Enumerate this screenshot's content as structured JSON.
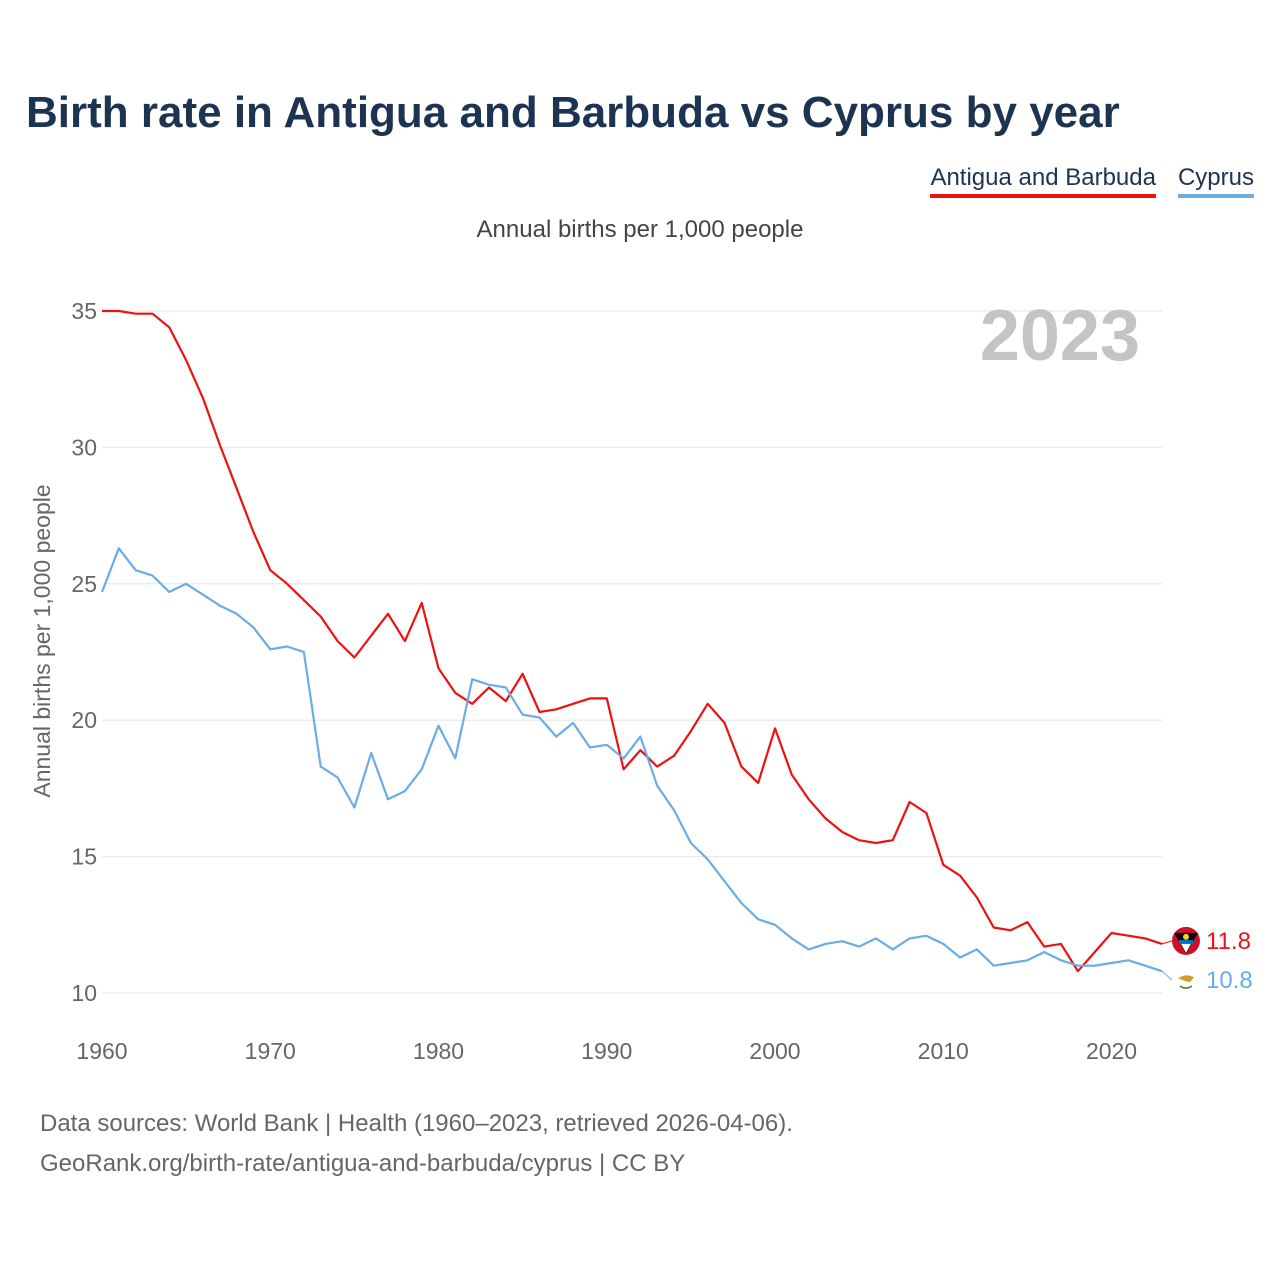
{
  "title": "Birth rate in Antigua and Barbuda vs Cyprus by year",
  "subtitle": "Annual births per 1,000 people",
  "year_watermark": "2023",
  "legend": [
    {
      "name": "Antigua and Barbuda",
      "color": "#ee1111"
    },
    {
      "name": "Cyprus",
      "color": "#6aace6"
    }
  ],
  "source_line1": "Data sources: World Bank | Health (1960–2023, retrieved 2026-04-06).",
  "source_line2": "GeoRank.org/birth-rate/antigua-and-barbuda/cyprus | CC BY",
  "chart_data": {
    "type": "line",
    "title": "Birth rate in Antigua and Barbuda vs Cyprus by year",
    "xlabel": "",
    "ylabel": "Annual births per 1,000 people",
    "xlim": [
      1960,
      2023
    ],
    "ylim": [
      10,
      35
    ],
    "xticks": [
      1960,
      1970,
      1980,
      1990,
      2000,
      2010,
      2020
    ],
    "yticks": [
      10,
      15,
      20,
      25,
      30,
      35
    ],
    "grid": true,
    "x": [
      1960,
      1961,
      1962,
      1963,
      1964,
      1965,
      1966,
      1967,
      1968,
      1969,
      1970,
      1971,
      1972,
      1973,
      1974,
      1975,
      1976,
      1977,
      1978,
      1979,
      1980,
      1981,
      1982,
      1983,
      1984,
      1985,
      1986,
      1987,
      1988,
      1989,
      1990,
      1991,
      1992,
      1993,
      1994,
      1995,
      1996,
      1997,
      1998,
      1999,
      2000,
      2001,
      2002,
      2003,
      2004,
      2005,
      2006,
      2007,
      2008,
      2009,
      2010,
      2011,
      2012,
      2013,
      2014,
      2015,
      2016,
      2017,
      2018,
      2019,
      2020,
      2021,
      2022,
      2023
    ],
    "series": [
      {
        "name": "Antigua and Barbuda",
        "color": "#ee1111",
        "end_label": "11.8",
        "values": [
          35.0,
          35.0,
          34.9,
          34.9,
          34.4,
          33.2,
          31.8,
          30.1,
          28.5,
          26.9,
          25.5,
          25.0,
          24.4,
          23.8,
          22.9,
          22.3,
          23.1,
          23.9,
          22.9,
          24.3,
          21.9,
          21.0,
          20.6,
          21.2,
          20.7,
          21.7,
          20.3,
          20.4,
          20.6,
          20.8,
          20.8,
          18.2,
          18.9,
          18.3,
          18.7,
          19.6,
          20.6,
          19.9,
          18.3,
          17.7,
          19.7,
          18.0,
          17.1,
          16.4,
          15.9,
          15.6,
          15.5,
          15.6,
          17.0,
          16.6,
          14.7,
          14.3,
          13.5,
          12.4,
          12.3,
          12.6,
          11.7,
          11.8,
          10.8,
          11.5,
          12.2,
          12.1,
          12.0,
          11.8
        ]
      },
      {
        "name": "Cyprus",
        "color": "#6aace6",
        "end_label": "10.8",
        "values": [
          24.7,
          26.3,
          25.5,
          25.3,
          24.7,
          25.0,
          24.6,
          24.2,
          23.9,
          23.4,
          22.6,
          22.7,
          22.5,
          18.3,
          17.9,
          16.8,
          18.8,
          17.1,
          17.4,
          18.2,
          19.8,
          18.6,
          21.5,
          21.3,
          21.2,
          20.2,
          20.1,
          19.4,
          19.9,
          19.0,
          19.1,
          18.6,
          19.4,
          17.6,
          16.7,
          15.5,
          14.9,
          14.1,
          13.3,
          12.7,
          12.5,
          12.0,
          11.6,
          11.8,
          11.9,
          11.7,
          12.0,
          11.6,
          12.0,
          12.1,
          11.8,
          11.3,
          11.6,
          11.0,
          11.1,
          11.2,
          11.5,
          11.2,
          11.0,
          11.0,
          11.1,
          11.2,
          11.0,
          10.8
        ]
      }
    ]
  }
}
